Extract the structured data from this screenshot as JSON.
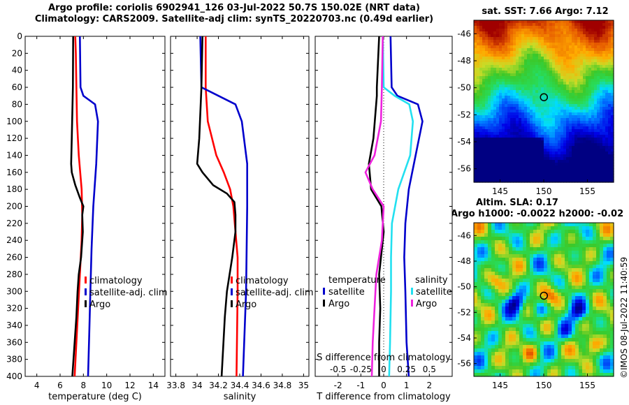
{
  "titles": {
    "line1": "Argo profile: coriolis 6902941_126 03-Jul-2022 50.7S 150.02E (NRT data)",
    "line2": "Climatology: CARS2009. Satellite-adj clim: synTS_20220703.nc (0.49d earlier)",
    "sst": "sat. SST: 7.66 Argo: 7.12",
    "sla1": "Altim. SLA: 0.17",
    "sla2": "Argo h1000: -0.0022 h2000: -0.02",
    "watermark": "©IMOS 08-Jul-2022 11:40:59"
  },
  "colors": {
    "climatology": "#ff0000",
    "satellite": "#0000cc",
    "argo": "#000000",
    "sal_sat": "#22e0f0",
    "sal_argo": "#ee22dd"
  },
  "chart_data": [
    {
      "type": "line",
      "name": "temperature",
      "xlabel": "temperature (deg C)",
      "xlim": [
        3,
        15
      ],
      "ylim": [
        0,
        400
      ],
      "xticks": [
        "4",
        "6",
        "8",
        "10",
        "12",
        "14"
      ],
      "yticks": [
        "0",
        "20",
        "40",
        "60",
        "80",
        "100",
        "120",
        "140",
        "160",
        "180",
        "200",
        "220",
        "240",
        "260",
        "280",
        "300",
        "320",
        "340",
        "360",
        "380",
        "400"
      ],
      "legend": [
        "climatology",
        "satellite-adj. clim",
        "Argo"
      ],
      "series": [
        {
          "name": "climatology",
          "depth": [
            0,
            20,
            60,
            100,
            140,
            180,
            210,
            240,
            280,
            320,
            360,
            400
          ],
          "values": [
            7.3,
            7.35,
            7.4,
            7.45,
            7.6,
            7.85,
            7.9,
            7.85,
            7.7,
            7.55,
            7.4,
            7.25
          ]
        },
        {
          "name": "satellite-adj. clim",
          "depth": [
            0,
            60,
            70,
            80,
            100,
            150,
            200,
            250,
            300,
            350,
            400
          ],
          "values": [
            7.7,
            7.75,
            8.0,
            9.0,
            9.25,
            9.1,
            8.85,
            8.7,
            8.6,
            8.5,
            8.4
          ]
        },
        {
          "name": "Argo",
          "depth": [
            0,
            60,
            120,
            150,
            160,
            175,
            190,
            200,
            210,
            230,
            260,
            280,
            300,
            330,
            360,
            400
          ],
          "values": [
            7.12,
            7.1,
            7.0,
            6.95,
            7.0,
            7.3,
            7.7,
            8.0,
            7.9,
            7.95,
            7.8,
            7.6,
            7.5,
            7.4,
            7.25,
            7.05
          ]
        }
      ]
    },
    {
      "type": "line",
      "name": "salinity",
      "xlabel": "salinity",
      "xlim": [
        33.75,
        35.05
      ],
      "ylim": [
        0,
        400
      ],
      "xticks": [
        "33.8",
        "34",
        "34.2",
        "34.4",
        "34.6",
        "34.8",
        "35"
      ],
      "legend": [
        "climatology",
        "satellite-adj. clim",
        "Argo"
      ],
      "series": [
        {
          "name": "climatology",
          "depth": [
            0,
            60,
            100,
            140,
            160,
            180,
            200,
            260,
            300,
            400
          ],
          "values": [
            34.08,
            34.08,
            34.1,
            34.18,
            34.25,
            34.31,
            34.34,
            34.38,
            34.38,
            34.37
          ]
        },
        {
          "name": "satellite-adj. clim",
          "depth": [
            0,
            60,
            70,
            80,
            100,
            150,
            200,
            300,
            400
          ],
          "values": [
            34.03,
            34.04,
            34.2,
            34.36,
            34.42,
            34.47,
            34.47,
            34.46,
            34.43
          ]
        },
        {
          "name": "Argo",
          "depth": [
            0,
            60,
            120,
            150,
            160,
            175,
            185,
            195,
            210,
            230,
            260,
            300,
            330,
            400
          ],
          "values": [
            34.05,
            34.04,
            34.02,
            34.0,
            34.05,
            34.15,
            34.28,
            34.35,
            34.36,
            34.36,
            34.33,
            34.28,
            34.26,
            34.23
          ]
        }
      ]
    },
    {
      "type": "line",
      "name": "difference",
      "xlabel": "T difference from climatology",
      "xlabel_top": "S difference from climatology",
      "xlim": [
        -3,
        3
      ],
      "ylim": [
        0,
        400
      ],
      "xticks": [
        "-2",
        "-1",
        "0",
        "1",
        "2"
      ],
      "xticks_top": [
        "-0.5",
        "-0.25",
        "0",
        "0.25",
        "0.5"
      ],
      "legend_left_title": "temperature",
      "legend_right_title": "salinity",
      "legend_left": [
        "satellite",
        "Argo"
      ],
      "legend_right": [
        "satellite",
        "Argo"
      ],
      "series": [
        {
          "name": "T satellite",
          "depth": [
            0,
            60,
            70,
            80,
            100,
            140,
            180,
            220,
            260,
            300,
            360,
            400
          ],
          "values": [
            0.3,
            0.35,
            0.6,
            1.5,
            1.7,
            1.4,
            1.1,
            0.95,
            0.9,
            0.95,
            1.0,
            1.1
          ]
        },
        {
          "name": "T Argo",
          "depth": [
            0,
            60,
            70,
            120,
            150,
            180,
            200,
            230,
            280,
            320,
            360,
            400
          ],
          "values": [
            -0.2,
            -0.3,
            -0.3,
            -0.45,
            -0.65,
            -0.55,
            -0.1,
            0,
            -0.2,
            -0.15,
            -0.2,
            -0.2
          ]
        },
        {
          "name": "S satellite",
          "depth": [
            0,
            60,
            70,
            80,
            100,
            140,
            180,
            220,
            260,
            300,
            360,
            400
          ],
          "values": [
            -0.01,
            0,
            0.12,
            0.28,
            0.32,
            0.29,
            0.16,
            0.09,
            0.08,
            0.08,
            0.07,
            0.06
          ]
        },
        {
          "name": "S Argo",
          "depth": [
            0,
            60,
            100,
            140,
            160,
            180,
            200,
            240,
            280,
            320,
            360,
            400
          ],
          "values": [
            -0.01,
            -0.02,
            -0.03,
            -0.1,
            -0.2,
            -0.12,
            0,
            -0.02,
            -0.08,
            -0.1,
            -0.12,
            -0.13
          ]
        }
      ]
    },
    {
      "type": "heatmap",
      "name": "sst-map",
      "xlim": [
        142,
        158
      ],
      "ylim": [
        -57,
        -45
      ],
      "xticks": [
        "145",
        "150",
        "155"
      ],
      "yticks": [
        "-46",
        "-48",
        "-50",
        "-52",
        "-54",
        "-56"
      ],
      "marker": [
        150.02,
        -50.7
      ]
    },
    {
      "type": "heatmap",
      "name": "sla-map",
      "xlim": [
        142,
        158
      ],
      "ylim": [
        -57,
        -45
      ],
      "xticks": [
        "145",
        "150",
        "155"
      ],
      "yticks": [
        "-46",
        "-48",
        "-50",
        "-52",
        "-54",
        "-56"
      ],
      "marker": [
        150.02,
        -50.7
      ]
    }
  ]
}
